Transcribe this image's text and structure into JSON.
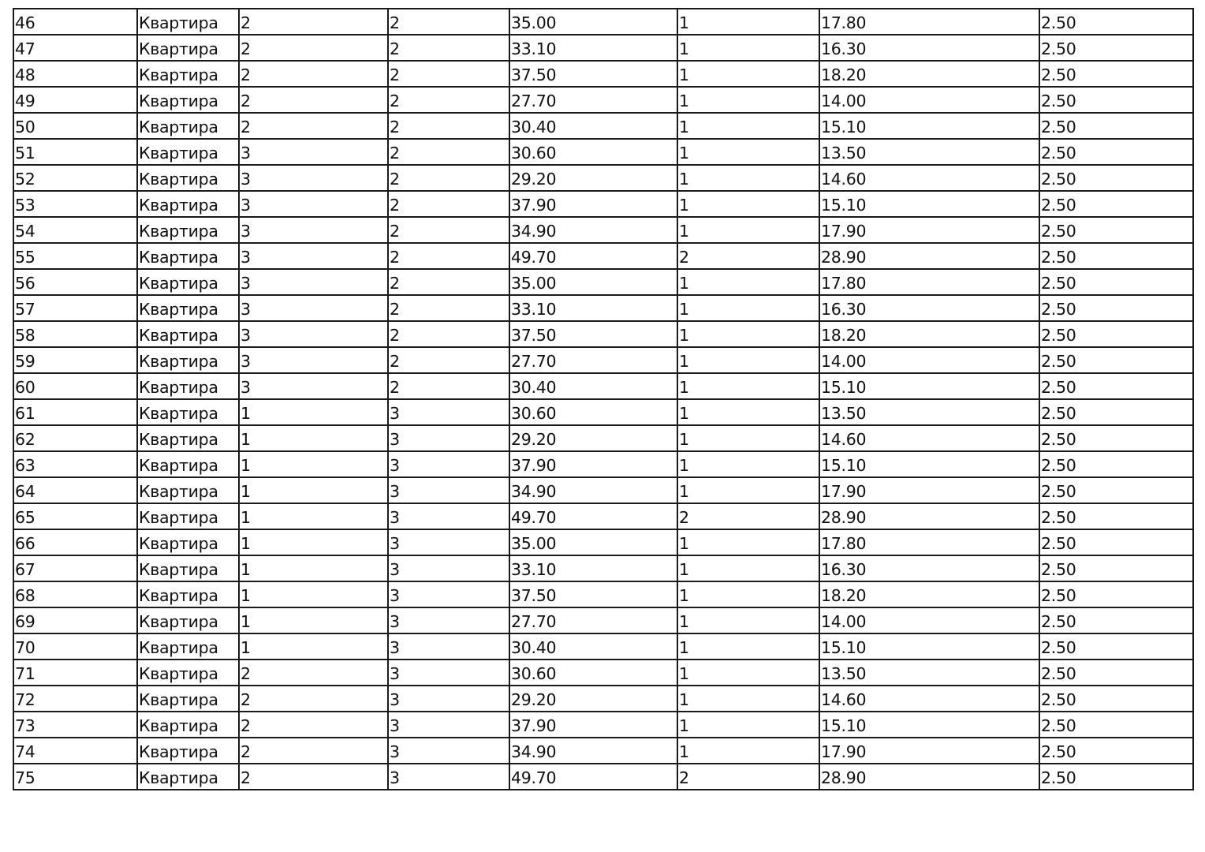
{
  "table": {
    "rows": [
      [
        "46",
        "Квартира",
        "2",
        "2",
        "35.00",
        "1",
        "17.80",
        "2.50"
      ],
      [
        "47",
        "Квартира",
        "2",
        "2",
        "33.10",
        "1",
        "16.30",
        "2.50"
      ],
      [
        "48",
        "Квартира",
        "2",
        "2",
        "37.50",
        "1",
        "18.20",
        "2.50"
      ],
      [
        "49",
        "Квартира",
        "2",
        "2",
        "27.70",
        "1",
        "14.00",
        "2.50"
      ],
      [
        "50",
        "Квартира",
        "2",
        "2",
        "30.40",
        "1",
        "15.10",
        "2.50"
      ],
      [
        "51",
        "Квартира",
        "3",
        "2",
        "30.60",
        "1",
        "13.50",
        "2.50"
      ],
      [
        "52",
        "Квартира",
        "3",
        "2",
        "29.20",
        "1",
        "14.60",
        "2.50"
      ],
      [
        "53",
        "Квартира",
        "3",
        "2",
        "37.90",
        "1",
        "15.10",
        "2.50"
      ],
      [
        "54",
        "Квартира",
        "3",
        "2",
        "34.90",
        "1",
        "17.90",
        "2.50"
      ],
      [
        "55",
        "Квартира",
        "3",
        "2",
        "49.70",
        "2",
        "28.90",
        "2.50"
      ],
      [
        "56",
        "Квартира",
        "3",
        "2",
        "35.00",
        "1",
        "17.80",
        "2.50"
      ],
      [
        "57",
        "Квартира",
        "3",
        "2",
        "33.10",
        "1",
        "16.30",
        "2.50"
      ],
      [
        "58",
        "Квартира",
        "3",
        "2",
        "37.50",
        "1",
        "18.20",
        "2.50"
      ],
      [
        "59",
        "Квартира",
        "3",
        "2",
        "27.70",
        "1",
        "14.00",
        "2.50"
      ],
      [
        "60",
        "Квартира",
        "3",
        "2",
        "30.40",
        "1",
        "15.10",
        "2.50"
      ],
      [
        "61",
        "Квартира",
        "1",
        "3",
        "30.60",
        "1",
        "13.50",
        "2.50"
      ],
      [
        "62",
        "Квартира",
        "1",
        "3",
        "29.20",
        "1",
        "14.60",
        "2.50"
      ],
      [
        "63",
        "Квартира",
        "1",
        "3",
        "37.90",
        "1",
        "15.10",
        "2.50"
      ],
      [
        "64",
        "Квартира",
        "1",
        "3",
        "34.90",
        "1",
        "17.90",
        "2.50"
      ],
      [
        "65",
        "Квартира",
        "1",
        "3",
        "49.70",
        "2",
        "28.90",
        "2.50"
      ],
      [
        "66",
        "Квартира",
        "1",
        "3",
        "35.00",
        "1",
        "17.80",
        "2.50"
      ],
      [
        "67",
        "Квартира",
        "1",
        "3",
        "33.10",
        "1",
        "16.30",
        "2.50"
      ],
      [
        "68",
        "Квартира",
        "1",
        "3",
        "37.50",
        "1",
        "18.20",
        "2.50"
      ],
      [
        "69",
        "Квартира",
        "1",
        "3",
        "27.70",
        "1",
        "14.00",
        "2.50"
      ],
      [
        "70",
        "Квартира",
        "1",
        "3",
        "30.40",
        "1",
        "15.10",
        "2.50"
      ],
      [
        "71",
        "Квартира",
        "2",
        "3",
        "30.60",
        "1",
        "13.50",
        "2.50"
      ],
      [
        "72",
        "Квартира",
        "2",
        "3",
        "29.20",
        "1",
        "14.60",
        "2.50"
      ],
      [
        "73",
        "Квартира",
        "2",
        "3",
        "37.90",
        "1",
        "15.10",
        "2.50"
      ],
      [
        "74",
        "Квартира",
        "2",
        "3",
        "34.90",
        "1",
        "17.90",
        "2.50"
      ],
      [
        "75",
        "Квартира",
        "2",
        "3",
        "49.70",
        "2",
        "28.90",
        "2.50"
      ]
    ]
  }
}
